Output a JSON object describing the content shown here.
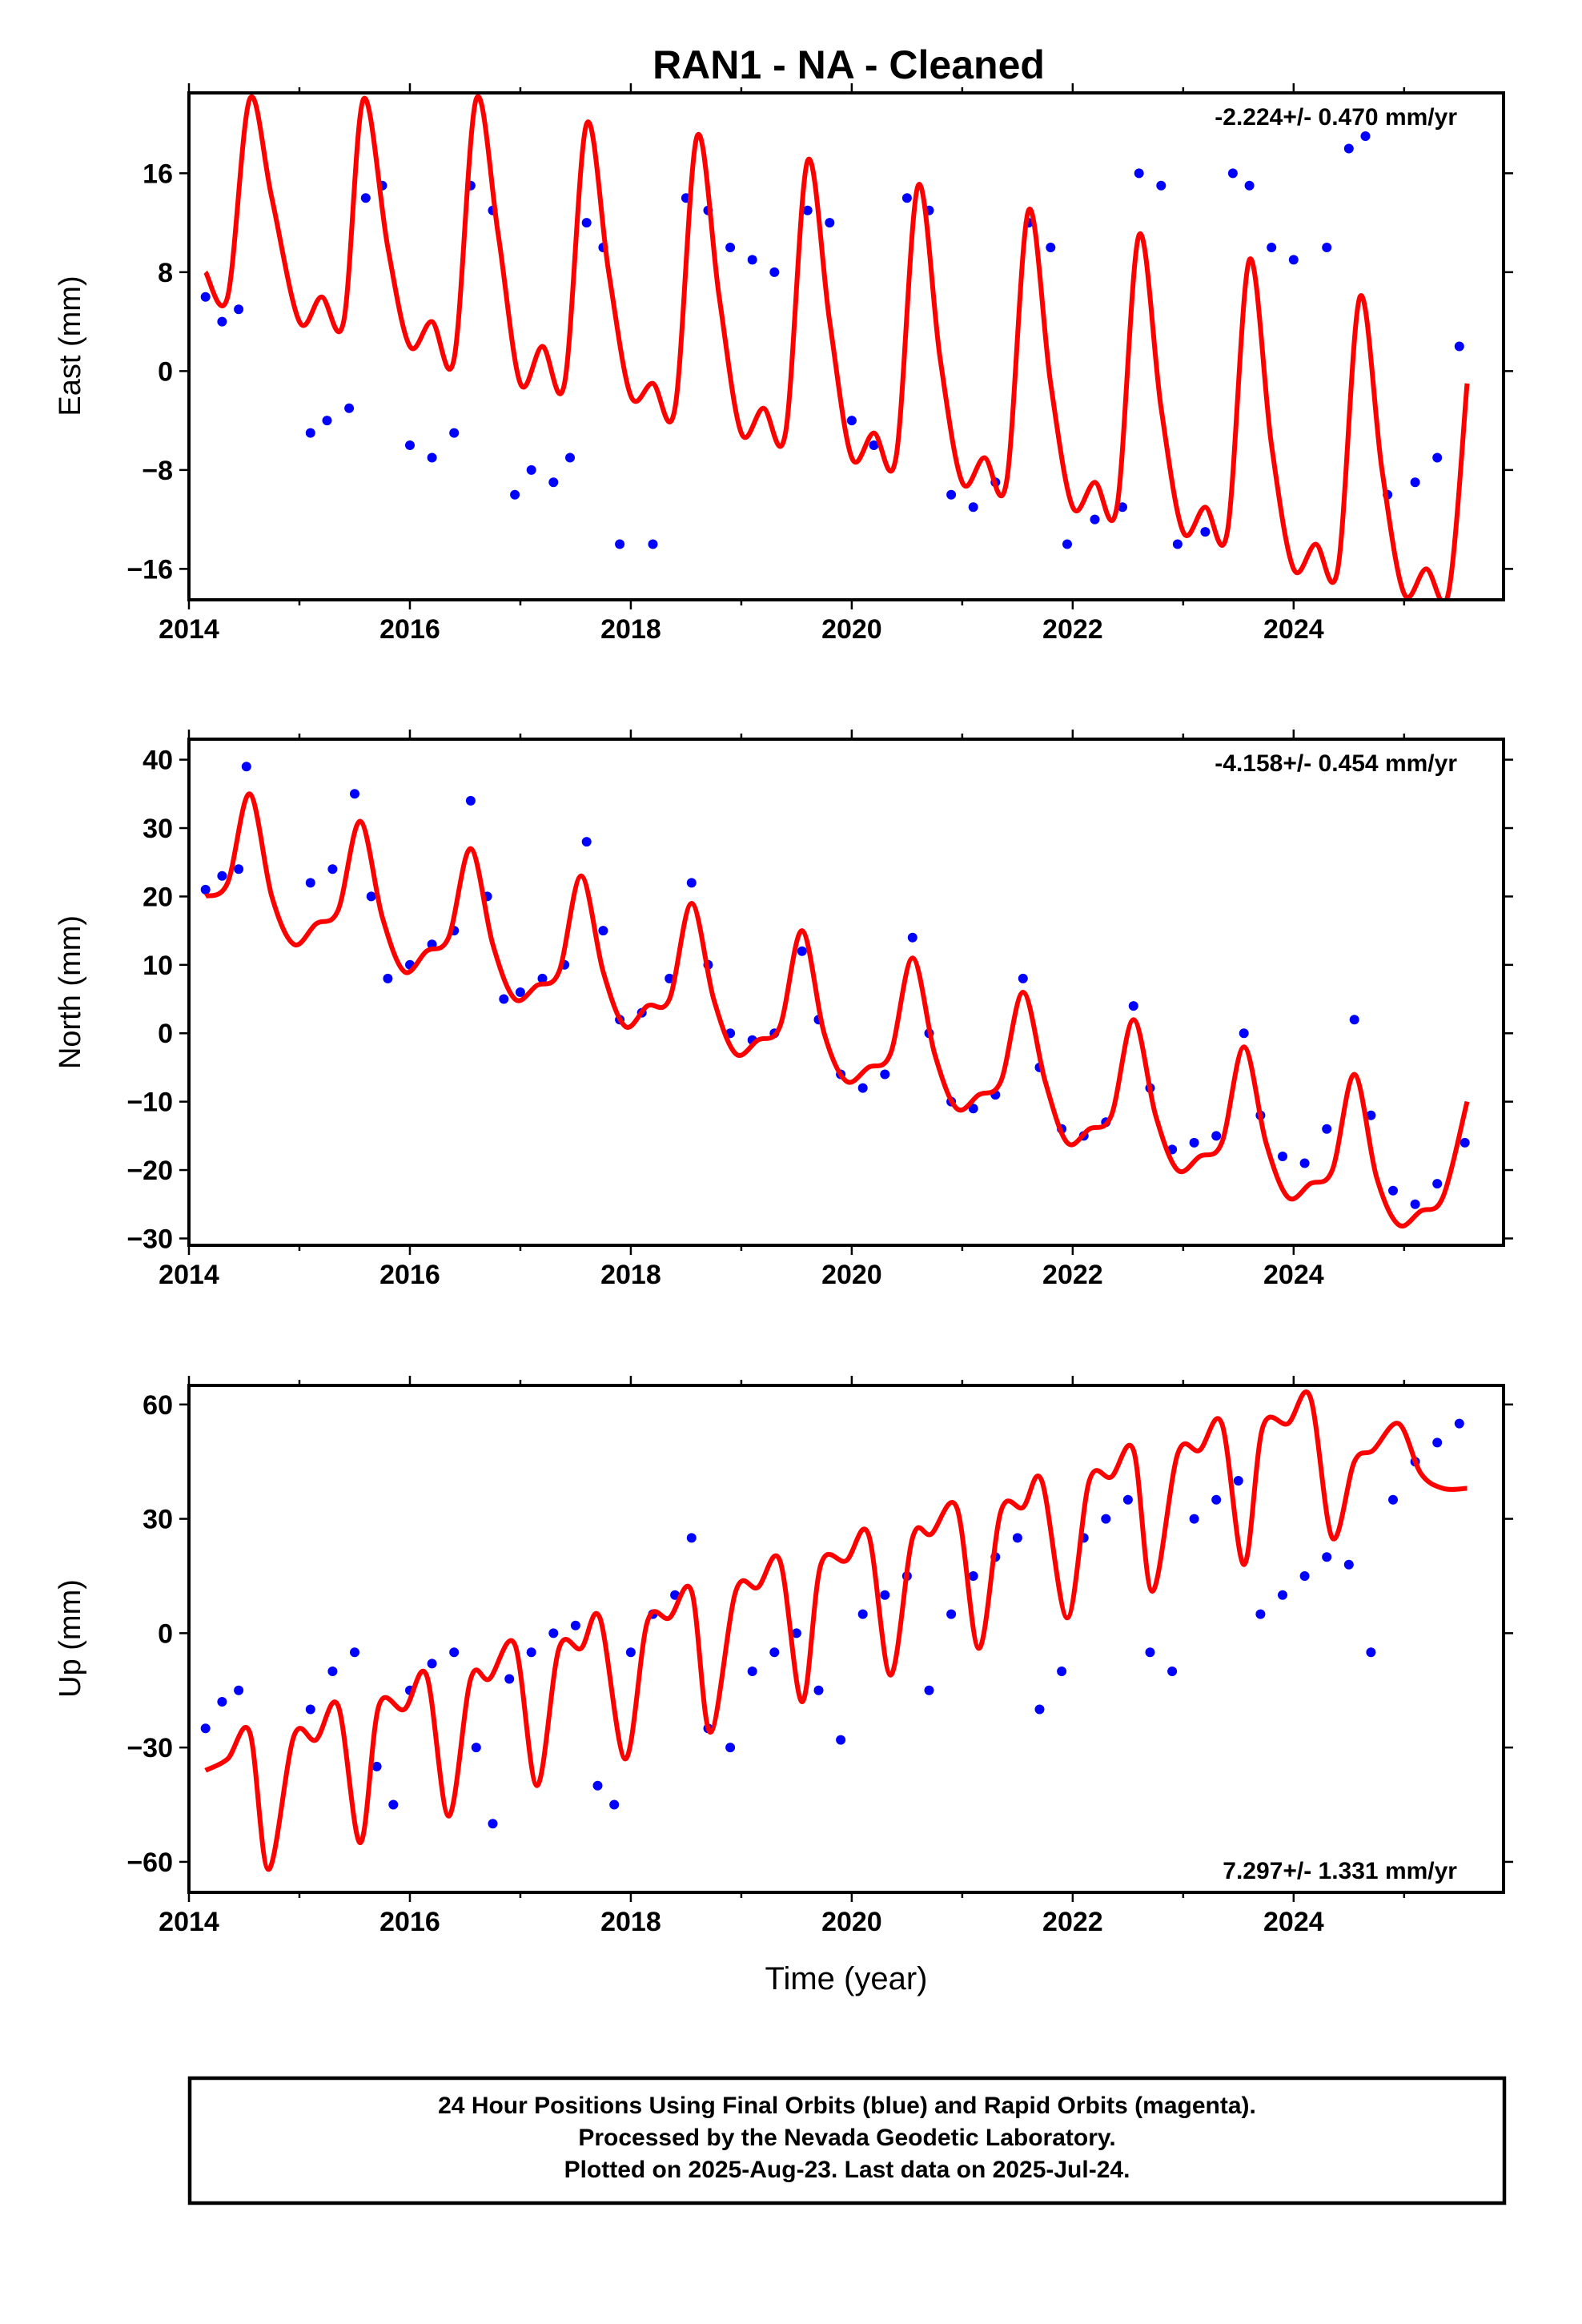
{
  "title": "RAN1  - NA - Cleaned",
  "xlabel": "Time (year)",
  "colors": {
    "data": "#0000ff",
    "model": "#ff0000",
    "frame": "#000000"
  },
  "chart_data": [
    {
      "type": "scatter",
      "id": "east",
      "ylabel": "East (mm)",
      "rate": "-2.224+/- 0.470 mm/yr",
      "xlim": [
        2014.0,
        2025.9
      ],
      "ylim": [
        -18.5,
        22.5
      ],
      "xticks": [
        2014,
        2016,
        2018,
        2020,
        2022,
        2024
      ],
      "yticks": [
        -16,
        -8,
        0,
        8,
        16
      ],
      "series": [
        {
          "kind": "points",
          "x": [
            2014.15,
            2014.3,
            2014.45,
            2015.1,
            2015.25,
            2015.45,
            2015.6,
            2015.75,
            2016.0,
            2016.2,
            2016.4,
            2016.55,
            2016.75,
            2016.95,
            2017.1,
            2017.3,
            2017.45,
            2017.6,
            2017.75,
            2017.9,
            2018.2,
            2018.5,
            2018.7,
            2018.9,
            2019.1,
            2019.3,
            2019.6,
            2019.8,
            2020.0,
            2020.2,
            2020.5,
            2020.7,
            2020.9,
            2021.1,
            2021.3,
            2021.6,
            2021.8,
            2021.95,
            2022.2,
            2022.45,
            2022.6,
            2022.8,
            2022.95,
            2023.2,
            2023.45,
            2023.6,
            2023.8,
            2024.0,
            2024.3,
            2024.5,
            2024.65,
            2024.85,
            2025.1,
            2025.3,
            2025.5
          ],
          "y": [
            6,
            4,
            5,
            -5,
            -4,
            -3,
            14,
            15,
            -6,
            -7,
            -5,
            15,
            13,
            -10,
            -8,
            -9,
            -7,
            12,
            10,
            -14,
            -14,
            14,
            13,
            10,
            9,
            8,
            13,
            12,
            -4,
            -6,
            14,
            13,
            -10,
            -11,
            -9,
            12,
            10,
            -14,
            -12,
            -11,
            16,
            15,
            -14,
            -13,
            16,
            15,
            10,
            9,
            10,
            18,
            19,
            -10,
            -9,
            -7,
            2
          ]
        },
        {
          "kind": "model",
          "x": [
            2014.15,
            2014.35,
            2014.55,
            2014.75,
            2015.0,
            2015.2,
            2015.4,
            2015.58,
            2015.8,
            2016.0,
            2016.2,
            2016.4,
            2016.6,
            2016.8,
            2017.0,
            2017.2,
            2017.4,
            2017.6,
            2017.8,
            2018.0,
            2018.2,
            2018.4,
            2018.6,
            2018.8,
            2019.0,
            2019.2,
            2019.4,
            2019.6,
            2019.8,
            2020.0,
            2020.2,
            2020.4,
            2020.6,
            2020.8,
            2021.0,
            2021.2,
            2021.4,
            2021.6,
            2021.8,
            2022.0,
            2022.2,
            2022.4,
            2022.6,
            2022.8,
            2023.0,
            2023.2,
            2023.4,
            2023.6,
            2023.8,
            2024.0,
            2024.2,
            2024.4,
            2024.6,
            2024.8,
            2025.0,
            2025.2,
            2025.4,
            2025.57
          ],
          "y": [
            8,
            6,
            22,
            14,
            4,
            6,
            4,
            22,
            10,
            2,
            4,
            1,
            22,
            11,
            -1,
            2,
            -1,
            20,
            8,
            -2,
            -1,
            -3,
            19,
            6,
            -5,
            -3,
            -5,
            17,
            4,
            -7,
            -5,
            -7,
            15,
            1,
            -9,
            -7,
            -9,
            13,
            -1,
            -11,
            -9,
            -11,
            11,
            -3,
            -13,
            -11,
            -13,
            9,
            -6,
            -16,
            -14,
            -16,
            6,
            -8,
            -18,
            -16,
            -18,
            -1
          ]
        }
      ]
    },
    {
      "type": "scatter",
      "id": "north",
      "ylabel": "North (mm)",
      "rate": "-4.158+/- 0.454 mm/yr",
      "xlim": [
        2014.0,
        2025.9
      ],
      "ylim": [
        -31,
        43
      ],
      "xticks": [
        2014,
        2016,
        2018,
        2020,
        2022,
        2024
      ],
      "yticks": [
        -30,
        -20,
        -10,
        0,
        10,
        20,
        30,
        40
      ],
      "series": [
        {
          "kind": "points",
          "x": [
            2014.15,
            2014.3,
            2014.45,
            2014.52,
            2015.1,
            2015.3,
            2015.5,
            2015.65,
            2015.8,
            2016.0,
            2016.2,
            2016.4,
            2016.55,
            2016.7,
            2016.85,
            2017.0,
            2017.2,
            2017.4,
            2017.6,
            2017.75,
            2017.9,
            2018.1,
            2018.35,
            2018.55,
            2018.7,
            2018.9,
            2019.1,
            2019.3,
            2019.55,
            2019.7,
            2019.9,
            2020.1,
            2020.3,
            2020.55,
            2020.7,
            2020.9,
            2021.1,
            2021.3,
            2021.55,
            2021.7,
            2021.9,
            2022.1,
            2022.3,
            2022.55,
            2022.7,
            2022.9,
            2023.1,
            2023.3,
            2023.55,
            2023.7,
            2023.9,
            2024.1,
            2024.3,
            2024.55,
            2024.7,
            2024.9,
            2025.1,
            2025.3,
            2025.55
          ],
          "y": [
            21,
            23,
            24,
            39,
            22,
            24,
            35,
            20,
            8,
            10,
            13,
            15,
            34,
            20,
            5,
            6,
            8,
            10,
            28,
            15,
            2,
            3,
            8,
            22,
            10,
            0,
            -1,
            0,
            12,
            2,
            -6,
            -8,
            -6,
            14,
            0,
            -10,
            -11,
            -9,
            8,
            -5,
            -14,
            -15,
            -13,
            4,
            -8,
            -17,
            -16,
            -15,
            0,
            -12,
            -18,
            -19,
            -14,
            2,
            -12,
            -23,
            -25,
            -22,
            -16
          ]
        },
        {
          "kind": "model",
          "x": [
            2014.15,
            2014.35,
            2014.55,
            2014.75,
            2014.95,
            2015.15,
            2015.35,
            2015.55,
            2015.75,
            2015.95,
            2016.15,
            2016.35,
            2016.55,
            2016.75,
            2016.95,
            2017.15,
            2017.35,
            2017.55,
            2017.75,
            2017.95,
            2018.15,
            2018.35,
            2018.55,
            2018.75,
            2018.95,
            2019.15,
            2019.35,
            2019.55,
            2019.75,
            2019.95,
            2020.15,
            2020.35,
            2020.55,
            2020.75,
            2020.95,
            2021.15,
            2021.35,
            2021.55,
            2021.75,
            2021.95,
            2022.15,
            2022.35,
            2022.55,
            2022.75,
            2022.95,
            2023.15,
            2023.35,
            2023.55,
            2023.75,
            2023.95,
            2024.15,
            2024.35,
            2024.55,
            2024.75,
            2024.95,
            2025.15,
            2025.35,
            2025.57
          ],
          "y": [
            20,
            22,
            35,
            20,
            13,
            16,
            18,
            31,
            17,
            9,
            12,
            14,
            27,
            13,
            5,
            7,
            9,
            23,
            9,
            1,
            4,
            5,
            19,
            5,
            -3,
            -1,
            1,
            15,
            0,
            -7,
            -5,
            -3,
            11,
            -3,
            -11,
            -9,
            -7,
            6,
            -7,
            -16,
            -14,
            -12,
            2,
            -12,
            -20,
            -18,
            -16,
            -2,
            -16,
            -24,
            -22,
            -20,
            -6,
            -21,
            -28,
            -26,
            -24,
            -10
          ]
        }
      ]
    },
    {
      "type": "scatter",
      "id": "up",
      "ylabel": "Up (mm)",
      "rate": "7.297+/- 1.331 mm/yr",
      "xlim": [
        2014.0,
        2025.9
      ],
      "ylim": [
        -68,
        65
      ],
      "xticks": [
        2014,
        2016,
        2018,
        2020,
        2022,
        2024
      ],
      "yticks": [
        -60,
        -30,
        0,
        30,
        60
      ],
      "series": [
        {
          "kind": "points",
          "x": [
            2014.15,
            2014.3,
            2014.45,
            2015.1,
            2015.3,
            2015.5,
            2015.7,
            2015.85,
            2016.0,
            2016.2,
            2016.4,
            2016.6,
            2016.75,
            2016.9,
            2017.1,
            2017.3,
            2017.5,
            2017.7,
            2017.85,
            2018.0,
            2018.2,
            2018.4,
            2018.55,
            2018.7,
            2018.9,
            2019.1,
            2019.3,
            2019.5,
            2019.7,
            2019.9,
            2020.1,
            2020.3,
            2020.5,
            2020.7,
            2020.9,
            2021.1,
            2021.3,
            2021.5,
            2021.7,
            2021.9,
            2022.1,
            2022.3,
            2022.5,
            2022.7,
            2022.9,
            2023.1,
            2023.3,
            2023.5,
            2023.7,
            2023.9,
            2024.1,
            2024.3,
            2024.5,
            2024.7,
            2024.9,
            2025.1,
            2025.3,
            2025.5
          ],
          "y": [
            -25,
            -18,
            -15,
            -20,
            -10,
            -5,
            -35,
            -45,
            -15,
            -8,
            -5,
            -30,
            -50,
            -12,
            -5,
            0,
            2,
            -40,
            -45,
            -5,
            5,
            10,
            25,
            -25,
            -30,
            -10,
            -5,
            0,
            -15,
            -28,
            5,
            10,
            15,
            -15,
            5,
            15,
            20,
            25,
            -20,
            -10,
            25,
            30,
            35,
            -5,
            -10,
            30,
            35,
            40,
            5,
            10,
            15,
            20,
            18,
            -5,
            35,
            45,
            50,
            55
          ]
        },
        {
          "kind": "model",
          "x": [
            2014.15,
            2014.35,
            2014.55,
            2014.72,
            2014.95,
            2015.15,
            2015.35,
            2015.55,
            2015.72,
            2015.95,
            2016.15,
            2016.35,
            2016.55,
            2016.72,
            2016.95,
            2017.15,
            2017.35,
            2017.55,
            2017.72,
            2017.95,
            2018.15,
            2018.35,
            2018.55,
            2018.72,
            2018.95,
            2019.15,
            2019.35,
            2019.55,
            2019.72,
            2019.95,
            2020.15,
            2020.35,
            2020.55,
            2020.72,
            2020.95,
            2021.15,
            2021.35,
            2021.55,
            2021.72,
            2021.95,
            2022.15,
            2022.35,
            2022.55,
            2022.72,
            2022.95,
            2023.15,
            2023.35,
            2023.55,
            2023.72,
            2023.95,
            2024.15,
            2024.35,
            2024.55,
            2024.72,
            2024.95,
            2025.15,
            2025.35,
            2025.57
          ],
          "y": [
            -36,
            -33,
            -26,
            -62,
            -27,
            -28,
            -19,
            -55,
            -19,
            -20,
            -11,
            -48,
            -12,
            -12,
            -3,
            -40,
            -4,
            -4,
            4,
            -33,
            3,
            4,
            11,
            -26,
            11,
            12,
            19,
            -18,
            18,
            19,
            26,
            -11,
            25,
            26,
            33,
            -4,
            32,
            33,
            40,
            4,
            40,
            41,
            48,
            11,
            47,
            48,
            55,
            18,
            54,
            55,
            62,
            25,
            45,
            48,
            55,
            42,
            38,
            38
          ]
        }
      ]
    }
  ],
  "footer": {
    "line1": "24 Hour Positions Using Final Orbits (blue) and Rapid Orbits (magenta).",
    "line2": "Processed by the Nevada Geodetic Laboratory.",
    "line3": "Plotted on 2025-Aug-23. Last data on 2025-Jul-24."
  }
}
